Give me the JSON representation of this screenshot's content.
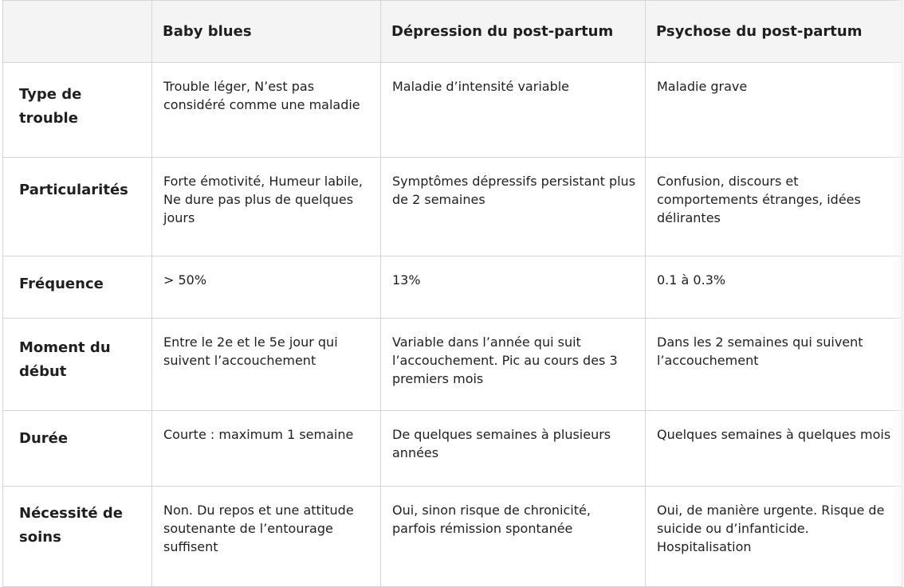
{
  "table": {
    "columns": [
      "",
      "Baby blues",
      "Dépression du post-partum",
      "Psychose du post-partum"
    ],
    "rows": [
      {
        "label": "Type de trouble",
        "cells": [
          "Trouble léger, N’est pas considéré comme une maladie",
          "Maladie d’intensité variable",
          "Maladie grave"
        ]
      },
      {
        "label": "Particularités",
        "cells": [
          "Forte émotivité, Humeur labile, Ne dure pas plus de quelques jours",
          "Symptômes dépressifs persistant plus de 2 semaines",
          "Confusion, discours et comportements étranges, idées délirantes"
        ]
      },
      {
        "label": "Fréquence",
        "cells": [
          "> 50%",
          "13%",
          "0.1 à 0.3%"
        ]
      },
      {
        "label": "Moment du début",
        "cells": [
          "Entre le 2e et le 5e jour qui suivent l’accouchement",
          "Variable dans l’année qui suit l’accouchement. Pic au cours des 3 premiers mois",
          "Dans les 2 semaines qui suivent l’accouchement"
        ]
      },
      {
        "label": "Durée",
        "cells": [
          "Courte : maximum 1 semaine",
          "De quelques semaines à plusieurs années",
          "Quelques semaines à quelques mois"
        ]
      },
      {
        "label": "Nécessité de soins",
        "cells": [
          "Non. Du repos et une attitude soutenante de l’entourage suffisent",
          "Oui, sinon risque de chronicité, parfois rémission spontanée",
          "Oui, de manière urgente. Risque de suicide ou d’infanticide. Hospitalisation"
        ]
      }
    ]
  }
}
